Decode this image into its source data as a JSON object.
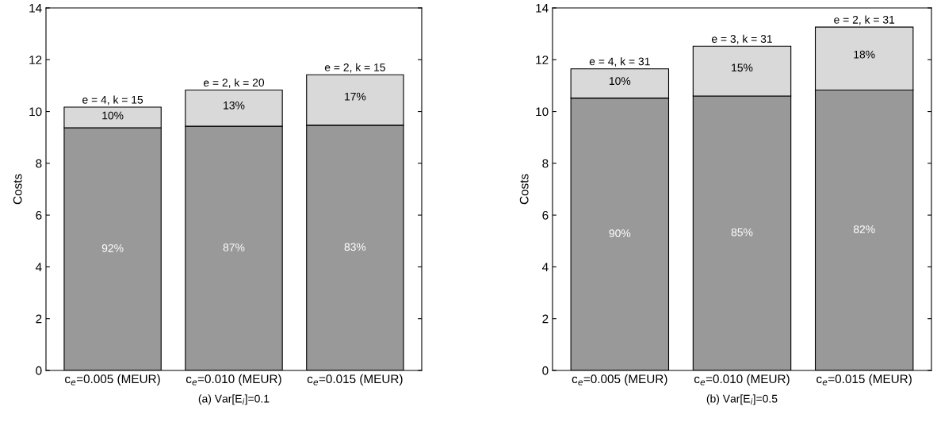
{
  "chart_data": [
    {
      "type": "bar",
      "stacked": true,
      "ylabel": "Costs",
      "xlabel": "(a) Var[E$_{i}$]=0.1",
      "categories": [
        "c$_{e}$=0.005 (MEUR)",
        "c$_{e}$=0.010 (MEUR)",
        "c$_{e}$=0.015 (MEUR)"
      ],
      "series": [
        {
          "color": "#999999",
          "values": [
            9.37,
            9.43,
            9.47
          ]
        },
        {
          "color": "#d9d9d9",
          "values": [
            0.8,
            1.4,
            1.95
          ]
        }
      ],
      "annotations": [
        "92%",
        "87%",
        "83%",
        "10%",
        "13%",
        "17%"
      ],
      "totals": [
        "e = 4, k = 15",
        "e = 2, k = 20",
        "e = 2, k = 15"
      ],
      "ylim": [
        0,
        14
      ],
      "yticks": [
        0,
        2,
        4,
        6,
        8,
        10,
        12,
        14
      ],
      "grid": false,
      "legend": false
    },
    {
      "type": "bar",
      "stacked": true,
      "ylabel": "Costs",
      "xlabel": "(b) Var[E$_{i}$]=0.5",
      "categories": [
        "c$_{e}$=0.005 (MEUR)",
        "c$_{e}$=0.010 (MEUR)",
        "c$_{e}$=0.015 (MEUR)"
      ],
      "series": [
        {
          "color": "#999999",
          "values": [
            10.52,
            10.6,
            10.83
          ]
        },
        {
          "color": "#d9d9d9",
          "values": [
            1.13,
            1.92,
            2.43
          ]
        }
      ],
      "annotations": [
        "90%",
        "85%",
        "82%",
        "10%",
        "15%",
        "18%"
      ],
      "totals": [
        "e = 4, k = 31",
        "e = 3, k = 31",
        "e = 2, k = 31"
      ],
      "ylim": [
        0,
        14
      ],
      "yticks": [
        0,
        2,
        4,
        6,
        8,
        10,
        12,
        14
      ],
      "grid": false,
      "legend": false
    }
  ]
}
